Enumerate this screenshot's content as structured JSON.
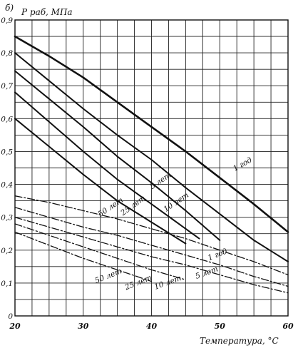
{
  "chart_data": {
    "type": "line",
    "panel_label": "б)",
    "ylabel": "P раб, МПа",
    "xlabel": "Температура, °С",
    "xlim": [
      20,
      60
    ],
    "ylim": [
      0,
      0.9
    ],
    "x_ticks": [
      "20",
      "30",
      "40",
      "50",
      "60"
    ],
    "y_ticks": [
      "0",
      "0,1",
      "0,2",
      "0,3",
      "0,4",
      "0,5",
      "0,6",
      "0,7",
      "0,8",
      "0,9"
    ],
    "grid": true,
    "series": [
      {
        "name": "1 год",
        "group": "upper",
        "style": "solid",
        "stroke_width": 2.6,
        "x": [
          20,
          25,
          30,
          35,
          40,
          45,
          50,
          55,
          60
        ],
        "y": [
          0.85,
          0.79,
          0.725,
          0.65,
          0.575,
          0.5,
          0.42,
          0.34,
          0.255
        ]
      },
      {
        "name": "5 лет",
        "group": "upper",
        "style": "solid",
        "stroke_width": 2.0,
        "x": [
          20,
          25,
          30,
          35,
          40,
          45,
          50,
          55,
          60
        ],
        "y": [
          0.8,
          0.715,
          0.63,
          0.55,
          0.475,
          0.39,
          0.31,
          0.23,
          0.165
        ]
      },
      {
        "name": "10 лет",
        "group": "upper",
        "style": "solid",
        "stroke_width": 2.0,
        "x": [
          20,
          25,
          30,
          35,
          40,
          45,
          50
        ],
        "y": [
          0.745,
          0.66,
          0.575,
          0.485,
          0.405,
          0.32,
          0.23
        ]
      },
      {
        "name": "25 лет",
        "group": "upper",
        "style": "solid",
        "stroke_width": 2.0,
        "x": [
          20,
          25,
          30,
          35,
          40,
          45,
          47
        ],
        "y": [
          0.68,
          0.59,
          0.5,
          0.415,
          0.34,
          0.265,
          0.235
        ]
      },
      {
        "name": "50 лет",
        "group": "upper",
        "style": "solid",
        "stroke_width": 2.0,
        "x": [
          20,
          25,
          30,
          35,
          40,
          45
        ],
        "y": [
          0.6,
          0.515,
          0.43,
          0.35,
          0.285,
          0.22
        ]
      },
      {
        "name": "1 год",
        "group": "lower",
        "style": "dashdot",
        "stroke_width": 1.3,
        "x": [
          20,
          25,
          30,
          35,
          40,
          45,
          50,
          55,
          60
        ],
        "y": [
          0.365,
          0.345,
          0.32,
          0.295,
          0.265,
          0.235,
          0.2,
          0.165,
          0.125
        ]
      },
      {
        "name": "5 лет",
        "group": "lower",
        "style": "dashdot",
        "stroke_width": 1.3,
        "x": [
          20,
          25,
          30,
          35,
          40,
          45,
          50,
          55,
          60
        ],
        "y": [
          0.33,
          0.3,
          0.27,
          0.245,
          0.215,
          0.185,
          0.155,
          0.12,
          0.09
        ]
      },
      {
        "name": "10 лет",
        "group": "lower",
        "style": "dashdot",
        "stroke_width": 1.3,
        "x": [
          20,
          25,
          30,
          35,
          40,
          45,
          50,
          55,
          60
        ],
        "y": [
          0.3,
          0.27,
          0.24,
          0.21,
          0.18,
          0.155,
          0.125,
          0.095,
          0.07
        ]
      },
      {
        "name": "25 лет",
        "group": "lower",
        "style": "dashdot",
        "stroke_width": 1.3,
        "x": [
          20,
          25,
          30,
          35,
          40,
          45
        ],
        "y": [
          0.28,
          0.245,
          0.21,
          0.175,
          0.14,
          0.11
        ]
      },
      {
        "name": "50 лет",
        "group": "lower",
        "style": "dashdot",
        "stroke_width": 1.3,
        "x": [
          20,
          25,
          30,
          35,
          40
        ],
        "y": [
          0.255,
          0.215,
          0.175,
          0.14,
          0.105
        ]
      }
    ],
    "curve_labels": [
      {
        "text": "1 год",
        "x": 53.5,
        "y": 0.455,
        "rotate": -30
      },
      {
        "text": "5 лет",
        "x": 41.5,
        "y": 0.405,
        "rotate": -34
      },
      {
        "text": "10 лет",
        "x": 43.8,
        "y": 0.34,
        "rotate": -34
      },
      {
        "text": "25 лет",
        "x": 37.5,
        "y": 0.33,
        "rotate": -36
      },
      {
        "text": "50 лет",
        "x": 34.2,
        "y": 0.325,
        "rotate": -34
      },
      {
        "text": "1 год",
        "x": 49.8,
        "y": 0.18,
        "rotate": -22
      },
      {
        "text": "5 лет",
        "x": 48.2,
        "y": 0.125,
        "rotate": -20
      },
      {
        "text": "10 лет",
        "x": 42.5,
        "y": 0.095,
        "rotate": -20
      },
      {
        "text": "25 лет",
        "x": 38.2,
        "y": 0.095,
        "rotate": -22
      },
      {
        "text": "50 лет",
        "x": 33.8,
        "y": 0.115,
        "rotate": -22
      }
    ]
  }
}
